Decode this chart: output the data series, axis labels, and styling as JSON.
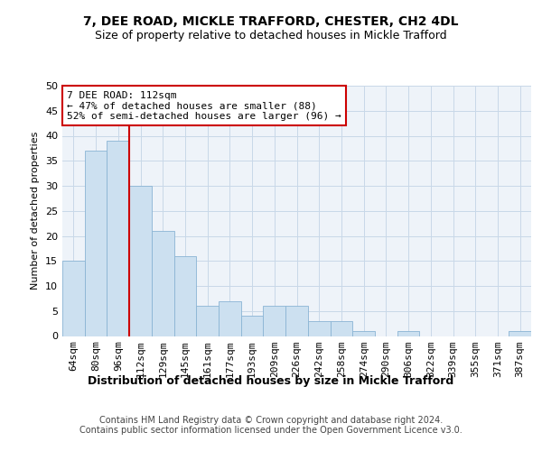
{
  "title1": "7, DEE ROAD, MICKLE TRAFFORD, CHESTER, CH2 4DL",
  "title2": "Size of property relative to detached houses in Mickle Trafford",
  "xlabel": "Distribution of detached houses by size in Mickle Trafford",
  "ylabel": "Number of detached properties",
  "categories": [
    "64sqm",
    "80sqm",
    "96sqm",
    "112sqm",
    "129sqm",
    "145sqm",
    "161sqm",
    "177sqm",
    "193sqm",
    "209sqm",
    "226sqm",
    "242sqm",
    "258sqm",
    "274sqm",
    "290sqm",
    "306sqm",
    "322sqm",
    "339sqm",
    "355sqm",
    "371sqm",
    "387sqm"
  ],
  "values": [
    15,
    37,
    39,
    30,
    21,
    16,
    6,
    7,
    4,
    6,
    6,
    3,
    3,
    1,
    0,
    1,
    0,
    0,
    0,
    0,
    1
  ],
  "bar_color": "#cce0f0",
  "bar_edge_color": "#8ab4d4",
  "grid_color": "#c8d8e8",
  "background_color": "#eef3f9",
  "annotation_text": "7 DEE ROAD: 112sqm\n← 47% of detached houses are smaller (88)\n52% of semi-detached houses are larger (96) →",
  "vline_x_idx": 3,
  "ylim": [
    0,
    50
  ],
  "yticks": [
    0,
    5,
    10,
    15,
    20,
    25,
    30,
    35,
    40,
    45,
    50
  ],
  "footer_text": "Contains HM Land Registry data © Crown copyright and database right 2024.\nContains public sector information licensed under the Open Government Licence v3.0.",
  "title1_fontsize": 10,
  "title2_fontsize": 9,
  "xlabel_fontsize": 9,
  "ylabel_fontsize": 8,
  "tick_fontsize": 8,
  "annotation_fontsize": 8,
  "footer_fontsize": 7
}
